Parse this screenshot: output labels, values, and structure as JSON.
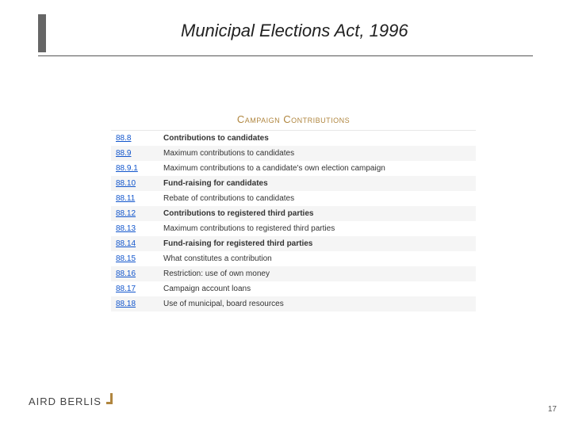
{
  "title": "Municipal Elections Act, 1996",
  "section_heading": "Campaign Contributions",
  "rows": [
    {
      "num": "88.8",
      "desc": "Contributions to candidates",
      "bold": true
    },
    {
      "num": "88.9",
      "desc": "Maximum contributions to candidates",
      "bold": false
    },
    {
      "num": "88.9.1",
      "desc": "Maximum contributions to a candidate's own election campaign",
      "bold": false
    },
    {
      "num": "88.10",
      "desc": "Fund-raising for candidates",
      "bold": true
    },
    {
      "num": "88.11",
      "desc": "Rebate of contributions to candidates",
      "bold": false
    },
    {
      "num": "88.12",
      "desc": "Contributions to registered third parties",
      "bold": true
    },
    {
      "num": "88.13",
      "desc": "Maximum contributions to registered third parties",
      "bold": false
    },
    {
      "num": "88.14",
      "desc": "Fund-raising for registered third parties",
      "bold": true
    },
    {
      "num": "88.15",
      "desc": "What constitutes a contribution",
      "bold": false
    },
    {
      "num": "88.16",
      "desc": "Restriction: use of own money",
      "bold": false
    },
    {
      "num": "88.17",
      "desc": "Campaign account loans",
      "bold": false
    },
    {
      "num": "88.18",
      "desc": "Use of municipal, board resources",
      "bold": false
    }
  ],
  "footer": {
    "brand": "AIRD BERLIS",
    "page": "17"
  },
  "colors": {
    "accent": "#b0863f",
    "title_bar": "#666666",
    "link": "#1155cc",
    "row_alt": "#f5f5f5"
  }
}
